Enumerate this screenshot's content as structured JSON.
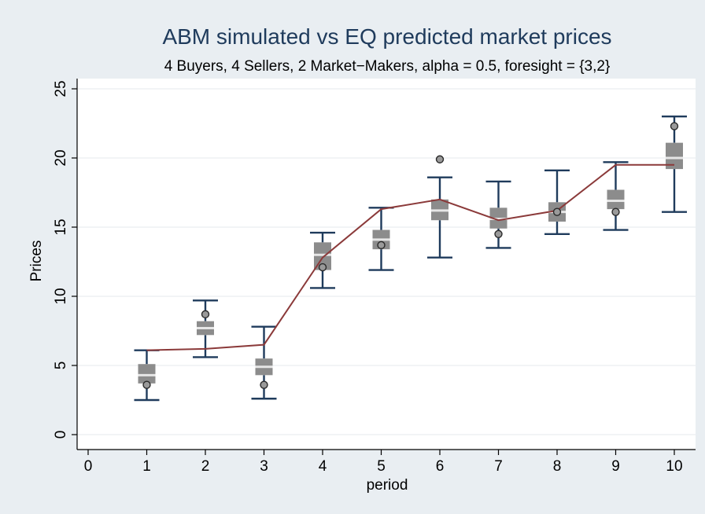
{
  "chart_data": {
    "type": "box",
    "title": "ABM simulated vs EQ predicted market prices",
    "subtitle": "4 Buyers, 4 Sellers, 2 Market−Makers, alpha = 0.5, foresight = {3,2}",
    "xlabel": "period",
    "ylabel": "Prices",
    "xlim": [
      0,
      10
    ],
    "ylim": [
      0,
      25
    ],
    "x_ticks": [
      0,
      1,
      2,
      3,
      4,
      5,
      6,
      7,
      8,
      9,
      10
    ],
    "y_ticks": [
      0,
      5,
      10,
      15,
      20,
      25
    ],
    "grid": "horizontal",
    "boxes": [
      {
        "period": 1,
        "whisker_low": 2.5,
        "q1": 3.7,
        "median": 4.3,
        "q3": 5.1,
        "whisker_high": 6.1,
        "outliers": [
          3.6
        ]
      },
      {
        "period": 2,
        "whisker_low": 5.6,
        "q1": 7.2,
        "median": 7.7,
        "q3": 8.2,
        "whisker_high": 9.7,
        "outliers": [
          8.7
        ]
      },
      {
        "period": 3,
        "whisker_low": 2.6,
        "q1": 4.3,
        "median": 4.9,
        "q3": 5.5,
        "whisker_high": 7.8,
        "outliers": [
          3.6
        ]
      },
      {
        "period": 4,
        "whisker_low": 10.6,
        "q1": 11.9,
        "median": 13.0,
        "q3": 13.9,
        "whisker_high": 14.6,
        "outliers": [
          12.1
        ]
      },
      {
        "period": 5,
        "whisker_low": 11.9,
        "q1": 13.4,
        "median": 14.1,
        "q3": 14.8,
        "whisker_high": 16.4,
        "outliers": [
          13.7
        ]
      },
      {
        "period": 6,
        "whisker_low": 12.8,
        "q1": 15.5,
        "median": 16.2,
        "q3": 17.0,
        "whisker_high": 18.6,
        "outliers": [
          19.9
        ]
      },
      {
        "period": 7,
        "whisker_low": 13.5,
        "q1": 14.9,
        "median": 15.6,
        "q3": 16.4,
        "whisker_high": 18.3,
        "outliers": [
          14.5
        ]
      },
      {
        "period": 8,
        "whisker_low": 14.5,
        "q1": 15.4,
        "median": 16.1,
        "q3": 16.8,
        "whisker_high": 19.1,
        "outliers": [
          16.1
        ]
      },
      {
        "period": 9,
        "whisker_low": 14.8,
        "q1": 16.3,
        "median": 16.9,
        "q3": 17.7,
        "whisker_high": 19.7,
        "outliers": [
          16.1
        ]
      },
      {
        "period": 10,
        "whisker_low": 16.1,
        "q1": 19.2,
        "median": 20.0,
        "q3": 21.1,
        "whisker_high": 23.0,
        "outliers": [
          22.3
        ]
      }
    ],
    "eq_line": {
      "x": [
        1,
        2,
        3,
        4,
        5,
        6,
        7,
        8,
        9,
        10
      ],
      "y": [
        6.1,
        6.2,
        6.5,
        12.8,
        16.3,
        17.0,
        15.5,
        16.2,
        19.5,
        19.5
      ]
    },
    "colors": {
      "box": "#8c8c8c",
      "median": "#e6e6e6",
      "whisker": "#1f3b5c",
      "outlier_fill": "#9a9a9a",
      "line": "#8b3a3a",
      "grid": "#e6eaee",
      "title": "#1f3b5c"
    }
  }
}
